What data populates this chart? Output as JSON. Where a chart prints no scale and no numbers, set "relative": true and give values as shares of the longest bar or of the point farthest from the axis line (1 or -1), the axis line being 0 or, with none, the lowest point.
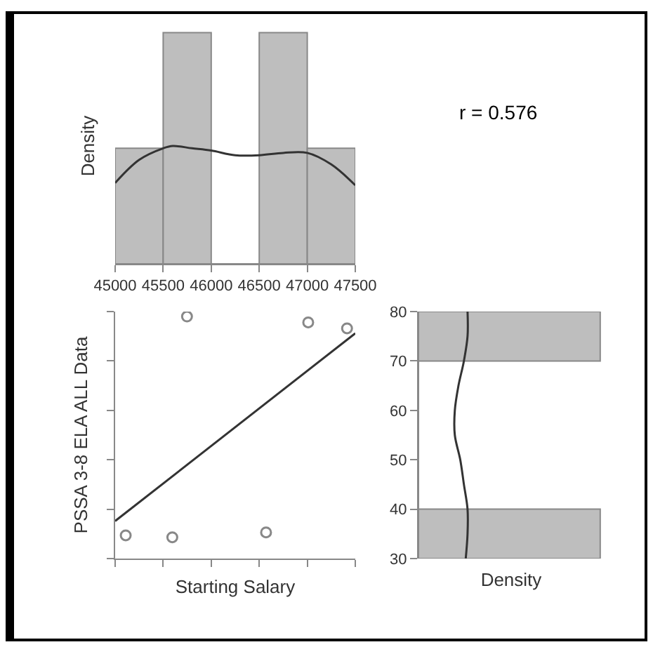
{
  "chart_data": [
    {
      "type": "histogram",
      "ylabel": "Density",
      "relative": true,
      "tick_labels": "x",
      "bins": [
        45000,
        45500,
        46000,
        46500,
        47000,
        47500
      ],
      "values": [
        0.5,
        1,
        0,
        1,
        0.5
      ],
      "color": "#bebebe",
      "xlim": [
        45000,
        47500
      ],
      "xticks": [
        45000,
        45500,
        46000,
        46500,
        47000,
        47500
      ],
      "series": [
        {
          "type": "line",
          "color": "#333333",
          "x": [
            45000,
            45250,
            45500,
            45600,
            45800,
            46000,
            46250,
            46500,
            46750,
            47000,
            47250,
            47500
          ],
          "values": [
            0.35,
            0.45,
            0.5,
            0.51,
            0.5,
            0.49,
            0.47,
            0.47,
            0.48,
            0.48,
            0.43,
            0.34
          ]
        }
      ]
    },
    {
      "type": "scatter",
      "xlabel": "Starting Salary",
      "ylabel": "PSSA 3-8 ELA ALL Data",
      "tick_labels": false,
      "xlim": [
        45000,
        47500
      ],
      "xticks": [
        45000,
        45500,
        46000,
        46500,
        47000,
        47500
      ],
      "ylim": [
        30,
        80
      ],
      "yticks": [
        30,
        40,
        50,
        60,
        70,
        80
      ],
      "series": [
        {
          "color": "#888888",
          "marker": "circle",
          "x": [
            45110,
            45595,
            45748,
            46571,
            47010,
            47414
          ],
          "values": [
            34.7,
            34.3,
            79.0,
            35.3,
            77.8,
            76.6
          ]
        },
        {
          "type": "line",
          "color": "#333333",
          "x": [
            45000,
            47500
          ],
          "values": [
            37.6,
            75.6
          ]
        }
      ]
    },
    {
      "type": "histogram",
      "orientation": "horizontal",
      "xlabel": "Density",
      "relative": true,
      "tick_labels": "y",
      "bins": [
        30,
        40,
        50,
        60,
        70,
        80
      ],
      "values": [
        1,
        0,
        0,
        0,
        1
      ],
      "color": "#bebebe",
      "ylim": [
        30,
        80
      ],
      "yticks": [
        30,
        40,
        50,
        60,
        70,
        80
      ],
      "series": [
        {
          "type": "line",
          "color": "#333333",
          "x": [
            30,
            35,
            40,
            45,
            50,
            55,
            60,
            65,
            70,
            75,
            80
          ],
          "values": [
            0.26,
            0.27,
            0.27,
            0.25,
            0.23,
            0.2,
            0.2,
            0.22,
            0.25,
            0.27,
            0.27
          ]
        }
      ]
    },
    {
      "type": "other",
      "annotations": [
        "r = 0.576"
      ]
    }
  ]
}
